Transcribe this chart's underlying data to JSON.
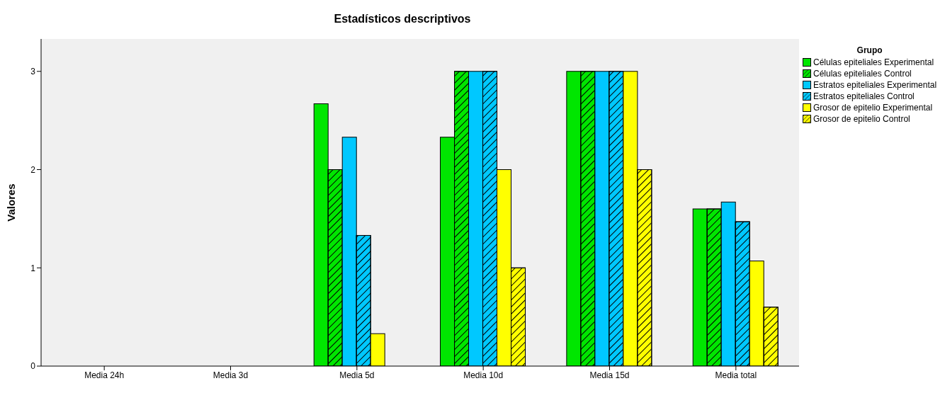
{
  "chart_data": {
    "type": "bar",
    "title": "Estadísticos descriptivos",
    "ylabel": "Valores",
    "legend_title": "Grupo",
    "legend": "right",
    "categories": [
      "Media  24h",
      "Media  3d",
      "Media  5d",
      "Media  10d",
      "Media  15d",
      "Media  total"
    ],
    "series": [
      {
        "name": "Células epiteliales Experimental",
        "color": "#00e600",
        "values": [
          0,
          0,
          2.67,
          2.33,
          3,
          1.6
        ]
      },
      {
        "name": "Células epiteliales Control",
        "color": "#00e600",
        "values": [
          0,
          0,
          2,
          3,
          3,
          1.6
        ]
      },
      {
        "name": "Estratos epiteliales Experimental",
        "color": "#00c8ff",
        "values": [
          0,
          0,
          2.33,
          3,
          3,
          1.67
        ]
      },
      {
        "name": "Estratos epiteliales Control",
        "color": "#00c8ff",
        "values": [
          0,
          0,
          1.33,
          3,
          3,
          1.47
        ]
      },
      {
        "name": "Grosor de epitelio Experimental",
        "color": "#ffff00",
        "values": [
          0,
          0,
          0.33,
          2,
          3,
          1.07
        ]
      },
      {
        "name": "Grosor de epitelio Control",
        "color": "#ffff00",
        "values": [
          0,
          0,
          0,
          1,
          2,
          0.6
        ]
      }
    ],
    "ylim": [
      0,
      3.33
    ],
    "yticks": [
      0,
      1,
      2,
      3
    ],
    "grid": false
  }
}
